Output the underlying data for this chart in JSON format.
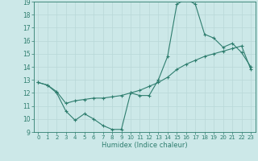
{
  "title": "",
  "xlabel": "Humidex (Indice chaleur)",
  "ylabel": "",
  "xlim": [
    -0.5,
    23.5
  ],
  "ylim": [
    9,
    19
  ],
  "yticks": [
    9,
    10,
    11,
    12,
    13,
    14,
    15,
    16,
    17,
    18,
    19
  ],
  "xticks": [
    0,
    1,
    2,
    3,
    4,
    5,
    6,
    7,
    8,
    9,
    10,
    11,
    12,
    13,
    14,
    15,
    16,
    17,
    18,
    19,
    20,
    21,
    22,
    23
  ],
  "line_color": "#2e7d6e",
  "bg_color": "#cce8e8",
  "grid_color": "#b8d8d8",
  "line1_x": [
    0,
    1,
    2,
    3,
    4,
    5,
    6,
    7,
    8,
    9,
    10,
    11,
    12,
    13,
    14,
    15,
    16,
    17,
    18,
    19,
    20,
    21,
    22,
    23
  ],
  "line1_y": [
    12.8,
    12.6,
    12.0,
    10.6,
    9.9,
    10.4,
    10.0,
    9.5,
    9.2,
    9.2,
    12.0,
    11.8,
    11.8,
    13.0,
    14.8,
    18.8,
    19.2,
    18.8,
    16.5,
    16.2,
    15.5,
    15.8,
    15.1,
    14.0
  ],
  "line2_x": [
    0,
    1,
    2,
    3,
    4,
    5,
    6,
    7,
    8,
    9,
    10,
    11,
    12,
    13,
    14,
    15,
    16,
    17,
    18,
    19,
    20,
    21,
    22,
    23
  ],
  "line2_y": [
    12.8,
    12.6,
    12.1,
    11.2,
    11.4,
    11.5,
    11.6,
    11.6,
    11.7,
    11.8,
    12.0,
    12.2,
    12.5,
    12.8,
    13.2,
    13.8,
    14.2,
    14.5,
    14.8,
    15.0,
    15.2,
    15.4,
    15.6,
    13.8
  ],
  "marker": "+",
  "markersize": 3,
  "linewidth": 0.8
}
